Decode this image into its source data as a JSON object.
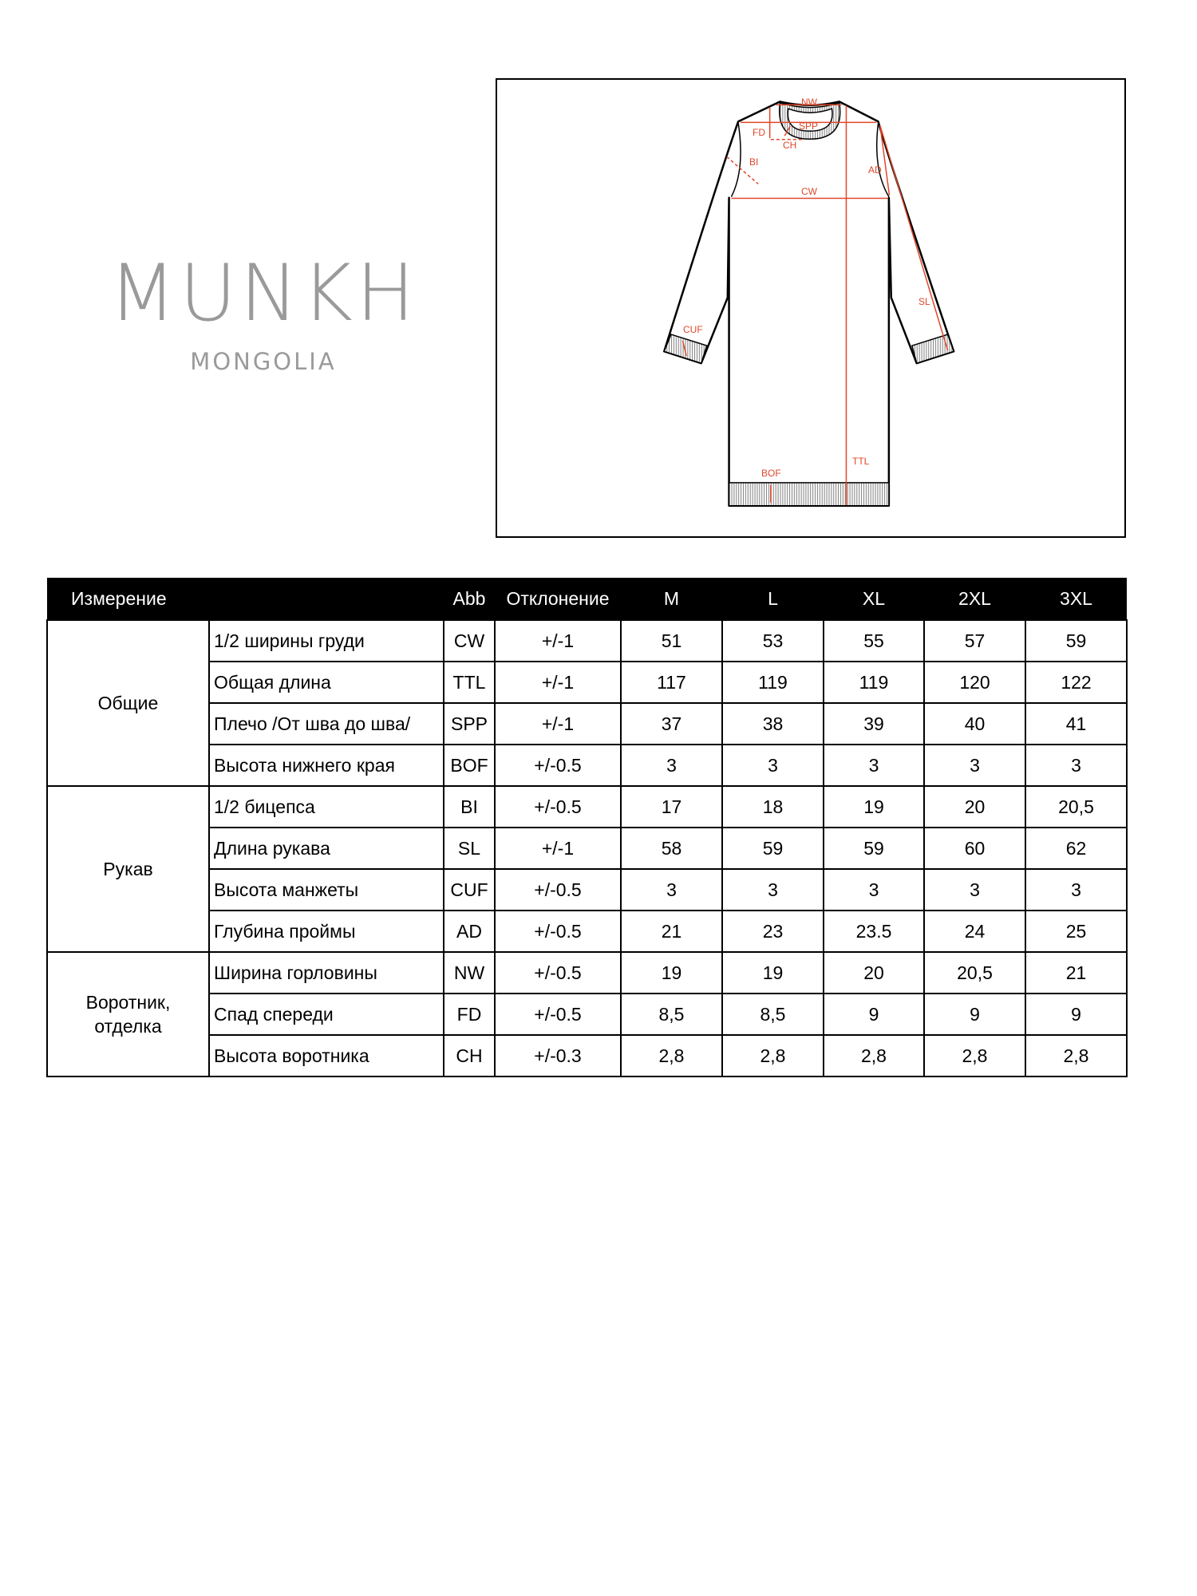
{
  "brand": {
    "name": "MUNKH",
    "subtitle": "MONGOLIA"
  },
  "diagram": {
    "labels": {
      "NW": "NW",
      "SPP": "SPP",
      "FD": "FD",
      "CH": "CH",
      "BI": "BI",
      "AD": "AD",
      "CW": "CW",
      "SL": "SL",
      "CUF": "CUF",
      "TTL": "TTL",
      "BOF": "BOF"
    },
    "colors": {
      "measure": "#e0482a",
      "outline": "#000000",
      "rib": "#8a8a8a"
    }
  },
  "table": {
    "headers": [
      "Измерение",
      "",
      "Abb",
      "Отклонение",
      "M",
      "L",
      "XL",
      "2XL",
      "3XL"
    ],
    "groups": [
      {
        "name": "Общие",
        "rows": [
          {
            "name": "1/2 ширины груди",
            "abb": "CW",
            "tol": "+/-1",
            "values": [
              "51",
              "53",
              "55",
              "57",
              "59"
            ]
          },
          {
            "name": "Общая длина",
            "abb": "TTL",
            "tol": "+/-1",
            "values": [
              "117",
              "119",
              "119",
              "120",
              "122"
            ]
          },
          {
            "name": "Плечо /От шва до шва/",
            "abb": "SPP",
            "tol": "+/-1",
            "values": [
              "37",
              "38",
              "39",
              "40",
              "41"
            ]
          },
          {
            "name": "Высота нижнего края",
            "abb": "BOF",
            "tol": "+/-0.5",
            "values": [
              "3",
              "3",
              "3",
              "3",
              "3"
            ]
          }
        ]
      },
      {
        "name": "Рукав",
        "rows": [
          {
            "name": "1/2 бицепса",
            "abb": "BI",
            "tol": "+/-0.5",
            "values": [
              "17",
              "18",
              "19",
              "20",
              "20,5"
            ]
          },
          {
            "name": "Длина рукава",
            "abb": "SL",
            "tol": "+/-1",
            "values": [
              "58",
              "59",
              "59",
              "60",
              "62"
            ]
          },
          {
            "name": "Высота манжеты",
            "abb": "CUF",
            "tol": "+/-0.5",
            "values": [
              "3",
              "3",
              "3",
              "3",
              "3"
            ]
          },
          {
            "name": "Глубина проймы",
            "abb": "AD",
            "tol": "+/-0.5",
            "values": [
              "21",
              "23",
              "23.5",
              "24",
              "25"
            ]
          }
        ]
      },
      {
        "name": "Воротник, отделка",
        "rows": [
          {
            "name": "Ширина горловины",
            "abb": "NW",
            "tol": "+/-0.5",
            "values": [
              "19",
              "19",
              "20",
              "20,5",
              "21"
            ]
          },
          {
            "name": "Спад спереди",
            "abb": "FD",
            "tol": "+/-0.5",
            "values": [
              "8,5",
              "8,5",
              "9",
              "9",
              "9"
            ]
          },
          {
            "name": "Высота воротника",
            "abb": "CH",
            "tol": "+/-0.3",
            "values": [
              "2,8",
              "2,8",
              "2,8",
              "2,8",
              "2,8"
            ]
          }
        ]
      }
    ]
  }
}
